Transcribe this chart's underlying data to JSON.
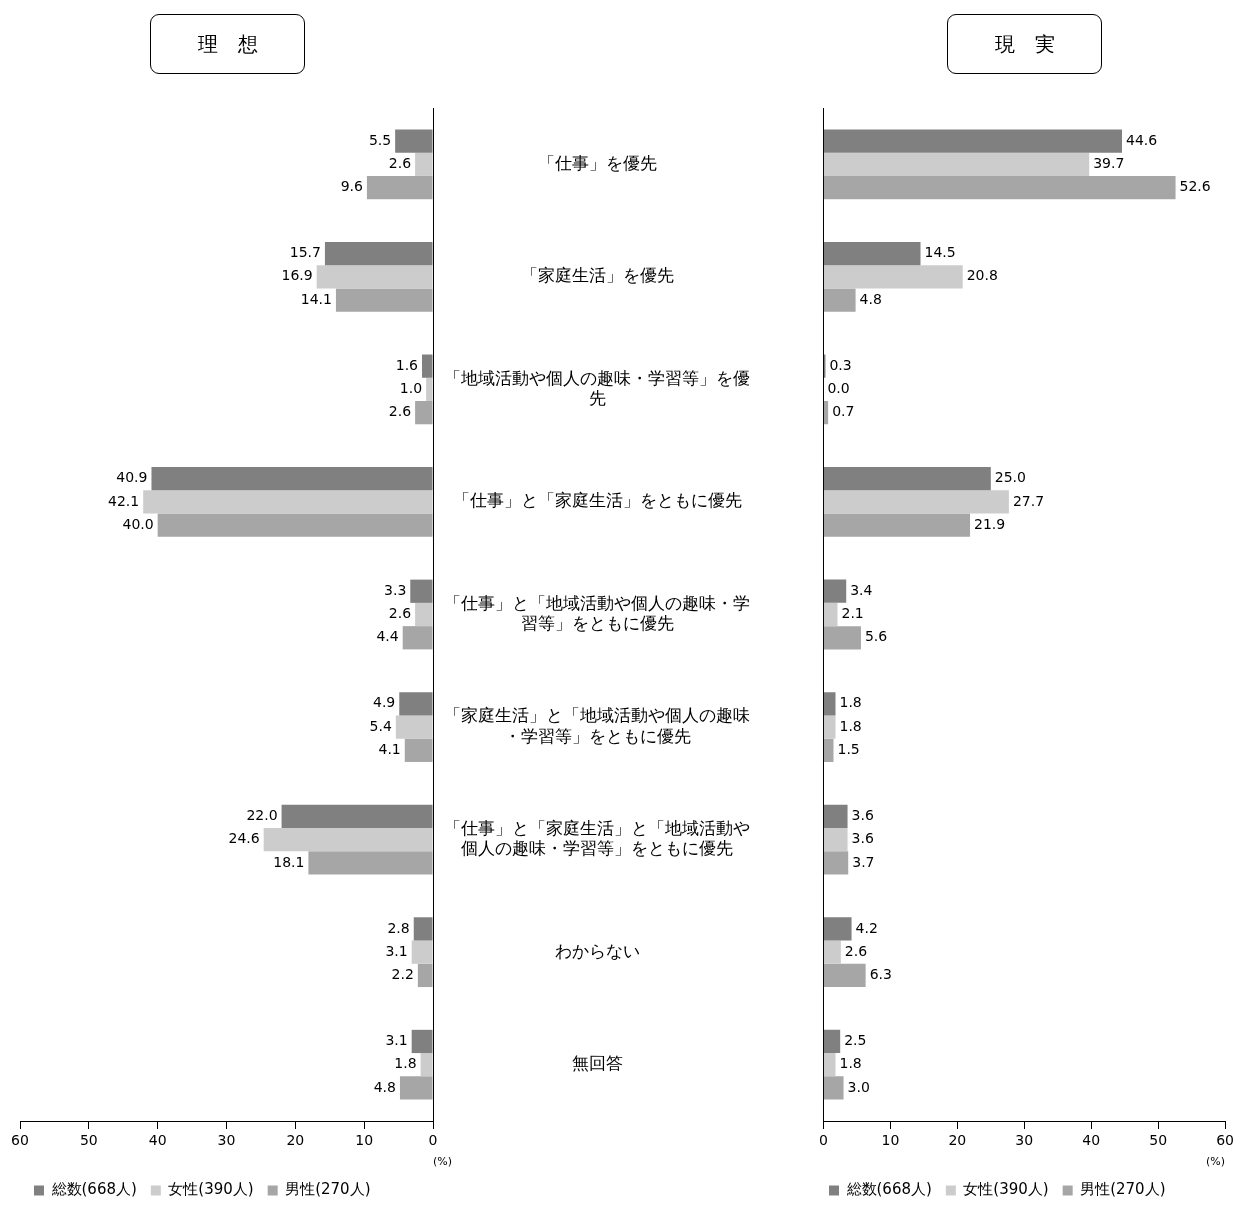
{
  "chart_data": [
    {
      "type": "bar",
      "orientation": "horizontal",
      "title": "理　想",
      "xlabel": "(%)",
      "legend": "bottom left",
      "xlim": [
        60,
        0
      ],
      "xticks": [
        60,
        50,
        40,
        30,
        20,
        10,
        0
      ],
      "categories": [
        "「仕事」を優先",
        "「家庭生活」を優先",
        "「地域活動や個人の趣味・学習等」を優先",
        "「仕事」と「家庭生活」をともに優先",
        "「仕事」と「地域活動や個人の趣味・学習等」をともに優先",
        "「家庭生活」と「地域活動や個人の趣味・学習等」をともに優先",
        "「仕事」と「家庭生活」と「地域活動や個人の趣味・学習等」をともに優先",
        "わからない",
        "無回答"
      ],
      "series": [
        {
          "name": "総数(668人)",
          "color": "#808080",
          "values": [
            5.5,
            15.7,
            1.6,
            40.9,
            3.3,
            4.9,
            22.0,
            2.8,
            3.1
          ],
          "value_labels": [
            "5.5",
            "15.7",
            "1.6",
            "40.9",
            "3.3",
            "4.9",
            "22.0",
            "2.8",
            "3.1"
          ]
        },
        {
          "name": "女性(390人)",
          "color": "#cccccc",
          "values": [
            2.6,
            16.9,
            1.0,
            42.1,
            2.6,
            5.4,
            24.6,
            3.1,
            1.8
          ],
          "value_labels": [
            "2.6",
            "16.9",
            "1.0",
            "42.1",
            "2.6",
            "5.4",
            "24.6",
            "3.1",
            "1.8"
          ]
        },
        {
          "name": "男性(270人)",
          "color": "#a6a6a6",
          "values": [
            9.6,
            14.1,
            2.6,
            40.0,
            4.4,
            4.1,
            18.1,
            2.2,
            4.8
          ],
          "value_labels": [
            "9.6",
            "14.1",
            "2.6",
            "40.0",
            "4.4",
            "4.1",
            "18.1",
            "2.2",
            "4.8"
          ]
        }
      ]
    },
    {
      "type": "bar",
      "orientation": "horizontal",
      "title": "現　実",
      "xlabel": "(%)",
      "legend": "bottom left",
      "tick_labels": "x",
      "xlim": [
        0,
        60
      ],
      "xticks": [
        0,
        10,
        20,
        30,
        40,
        50,
        60
      ],
      "categories": [
        null,
        null,
        null,
        null,
        null,
        null,
        null,
        null,
        null
      ],
      "series": [
        {
          "name": "総数(668人)",
          "color": "#808080",
          "values": [
            44.6,
            14.5,
            0.3,
            25.0,
            3.4,
            1.8,
            3.6,
            4.2,
            2.5
          ],
          "value_labels": [
            "44.6",
            "14.5",
            "0.3",
            "25.0",
            "3.4",
            "1.8",
            "3.6",
            "4.2",
            "2.5"
          ]
        },
        {
          "name": "女性(390人)",
          "color": "#cccccc",
          "values": [
            39.7,
            20.8,
            0.0,
            27.7,
            2.1,
            1.8,
            3.6,
            2.6,
            1.8
          ],
          "value_labels": [
            "39.7",
            "20.8",
            "0.0",
            "27.7",
            "2.1",
            "1.8",
            "3.6",
            "2.6",
            "1.8"
          ]
        },
        {
          "name": "男性(270人)",
          "color": "#a6a6a6",
          "values": [
            52.6,
            4.8,
            0.7,
            21.9,
            5.6,
            1.5,
            3.7,
            6.3,
            3.0
          ],
          "value_labels": [
            "52.6",
            "4.8",
            "0.7",
            "21.9",
            "5.6",
            "1.5",
            "3.7",
            "6.3",
            "3.0"
          ]
        }
      ]
    }
  ]
}
